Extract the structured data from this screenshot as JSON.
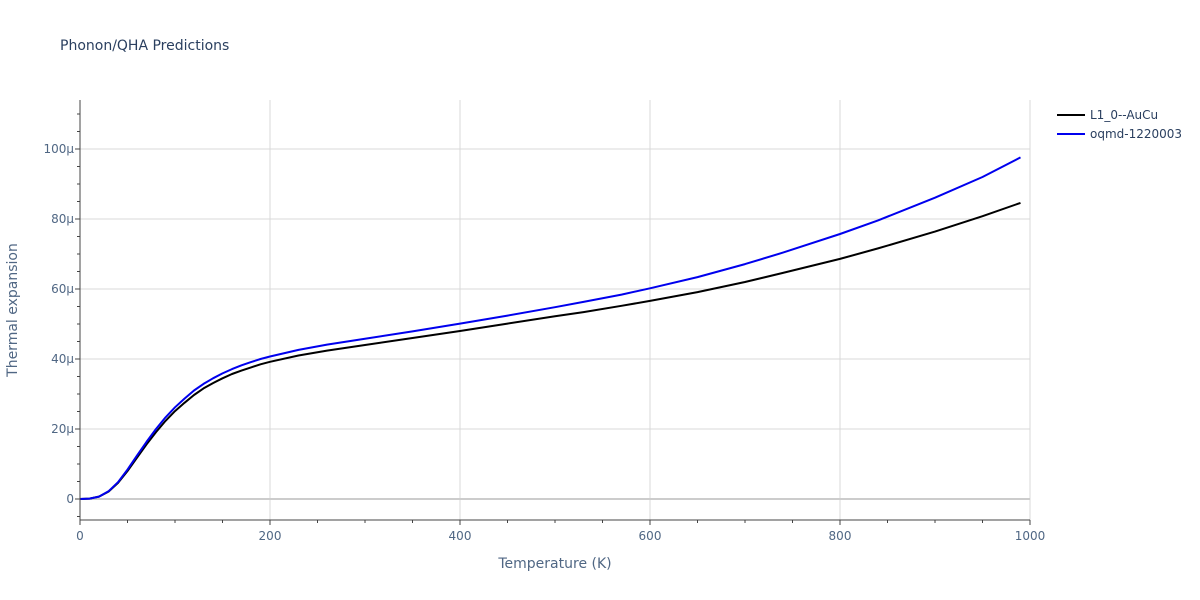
{
  "chart_data": {
    "type": "line",
    "title": "Phonon/QHA Predictions",
    "xlabel": "Temperature (K)",
    "ylabel": "Thermal expansion",
    "xlim": [
      0,
      1000
    ],
    "ylim": [
      -6,
      114
    ],
    "x_ticks": [
      0,
      200,
      400,
      600,
      800,
      1000
    ],
    "x_tick_labels": [
      "0",
      "200",
      "400",
      "600",
      "800",
      "1000"
    ],
    "y_ticks": [
      0,
      20,
      40,
      60,
      80,
      100
    ],
    "y_tick_labels": [
      "0",
      "20μ",
      "40μ",
      "60μ",
      "80μ",
      "100μ"
    ],
    "grid": true,
    "legend_position": "top-right, outside plot",
    "series": [
      {
        "name": "L1_0--AuCu",
        "color": "#000000",
        "x": [
          0,
          10,
          20,
          30,
          40,
          50,
          60,
          70,
          80,
          90,
          100,
          110,
          120,
          130,
          140,
          150,
          160,
          170,
          180,
          190,
          200,
          230,
          260,
          300,
          350,
          400,
          450,
          500,
          530,
          570,
          600,
          650,
          700,
          740,
          800,
          840,
          900,
          950,
          990
        ],
        "y": [
          0,
          0.1,
          0.7,
          2.1,
          4.6,
          8.0,
          11.8,
          15.6,
          19.1,
          22.3,
          25.1,
          27.5,
          29.7,
          31.6,
          33.1,
          34.5,
          35.7,
          36.7,
          37.6,
          38.5,
          39.2,
          41.0,
          42.4,
          44.0,
          46.0,
          48.0,
          50.1,
          52.2,
          53.4,
          55.2,
          56.6,
          59.1,
          62.0,
          64.6,
          68.6,
          71.6,
          76.4,
          80.8,
          84.6
        ]
      },
      {
        "name": "oqmd-1220003",
        "color": "#0000ee",
        "x": [
          0,
          10,
          20,
          30,
          40,
          50,
          60,
          70,
          80,
          90,
          100,
          110,
          120,
          130,
          140,
          150,
          160,
          170,
          180,
          190,
          200,
          230,
          260,
          300,
          350,
          400,
          450,
          500,
          530,
          570,
          600,
          650,
          700,
          740,
          800,
          840,
          900,
          950,
          990
        ],
        "y": [
          0,
          0.1,
          0.7,
          2.2,
          4.8,
          8.4,
          12.4,
          16.3,
          20.0,
          23.3,
          26.2,
          28.7,
          31.0,
          32.9,
          34.5,
          35.9,
          37.1,
          38.2,
          39.1,
          40.0,
          40.7,
          42.6,
          44.1,
          45.8,
          47.9,
          50.1,
          52.4,
          54.8,
          56.3,
          58.4,
          60.2,
          63.4,
          67.1,
          70.4,
          75.7,
          79.6,
          86.1,
          92.0,
          97.6
        ]
      }
    ]
  }
}
